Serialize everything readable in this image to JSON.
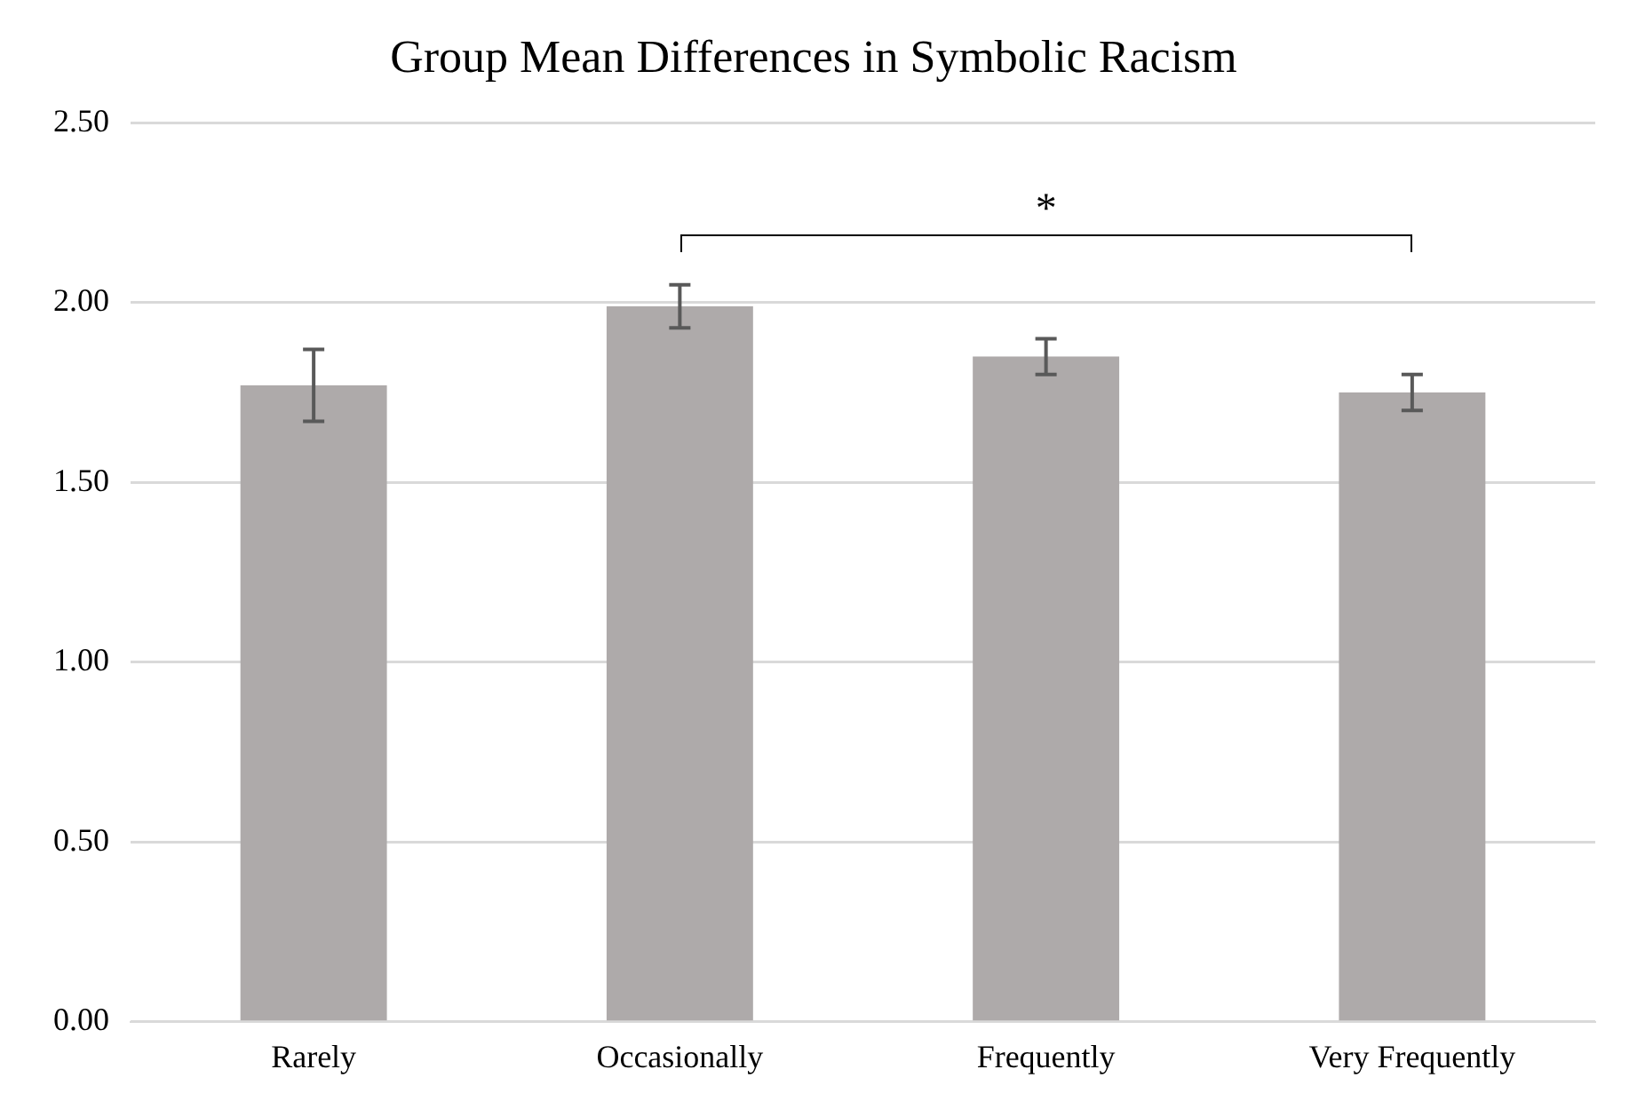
{
  "chart_data": {
    "type": "bar",
    "title": "Group Mean Differences in Symbolic Racism",
    "categories": [
      "Rarely",
      "Occasionally",
      "Frequently",
      "Very Frequently"
    ],
    "values": [
      1.77,
      1.99,
      1.85,
      1.75
    ],
    "errors": [
      0.1,
      0.06,
      0.05,
      0.05
    ],
    "color": "#aeaaaa",
    "ylim": [
      0,
      2.5
    ],
    "yticks": [
      {
        "value": 0,
        "label": "0.00"
      },
      {
        "value": 0.5,
        "label": "0.50"
      },
      {
        "value": 1,
        "label": "1.00"
      },
      {
        "value": 1.5,
        "label": "1.50"
      },
      {
        "value": 2,
        "label": "2.00"
      },
      {
        "value": 2.5,
        "label": "2.50"
      }
    ],
    "grid": "y",
    "legend": false,
    "annotations": [
      "*"
    ]
  }
}
